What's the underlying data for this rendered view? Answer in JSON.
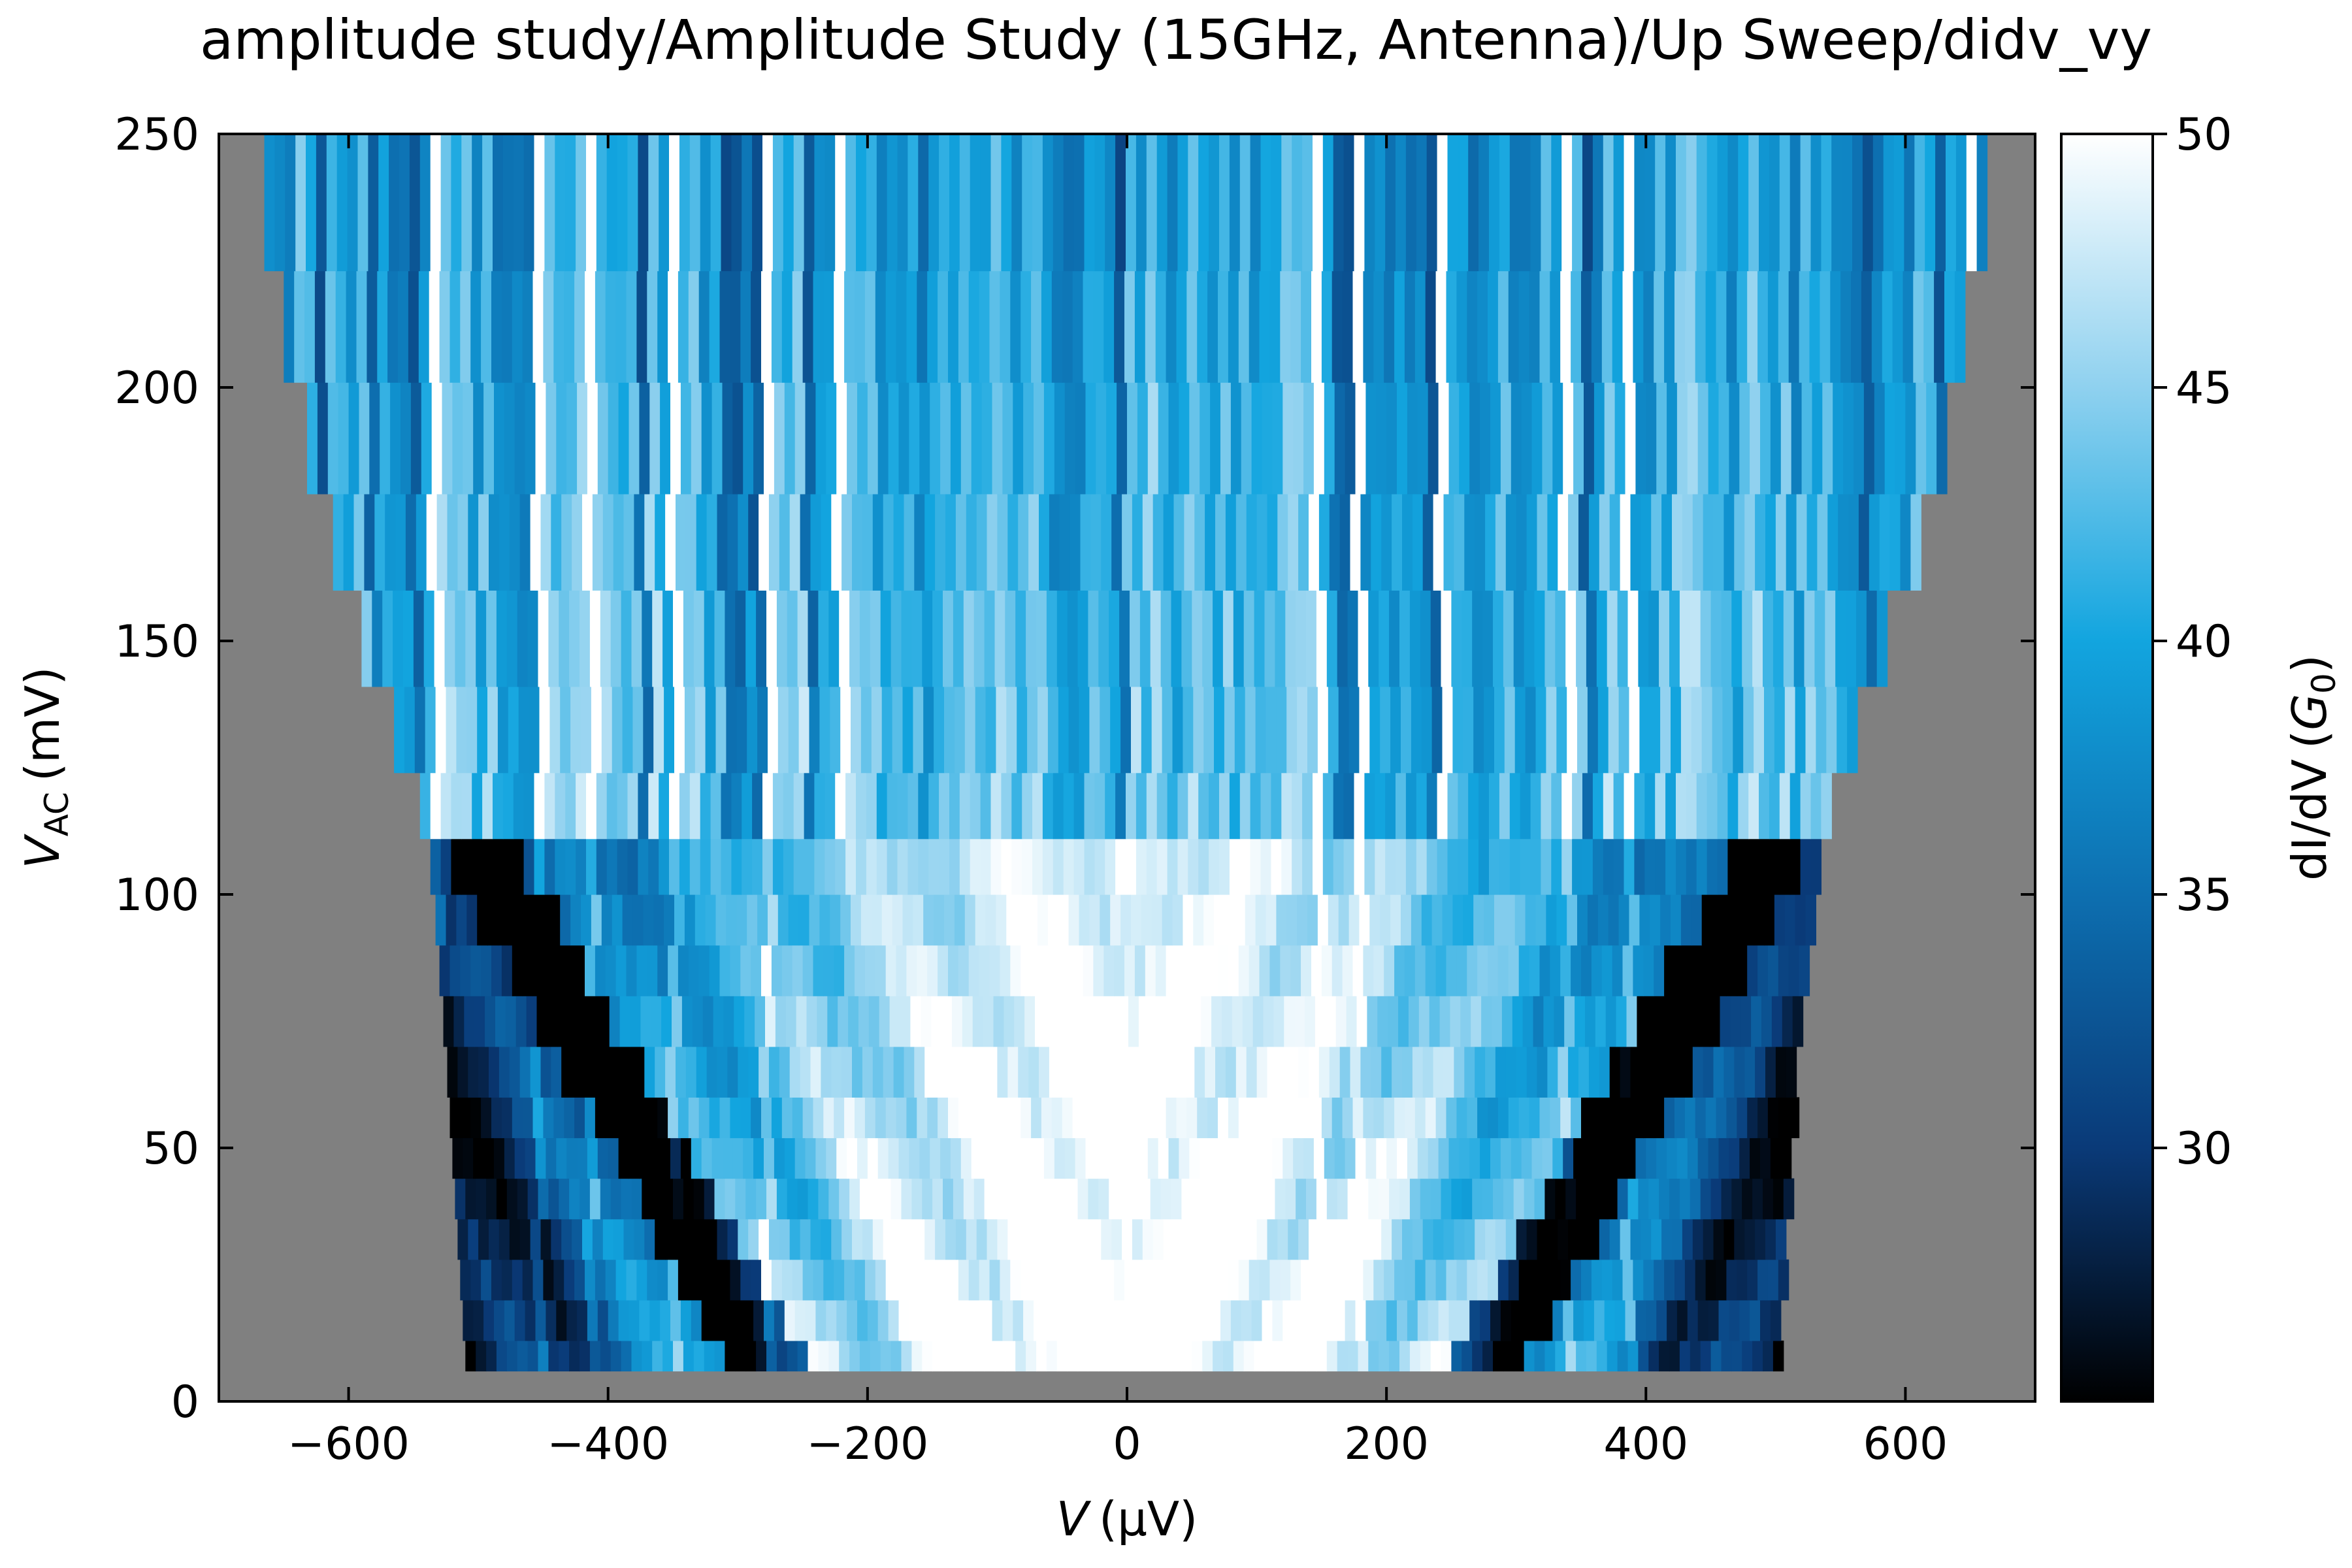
{
  "chart_data": {
    "type": "heatmap",
    "title": "amplitude study/Amplitude Study (15GHz, Antenna)/Up Sweep/didv_vy",
    "x_axis": {
      "label": "V (μV)",
      "label_var": "V",
      "label_unit": "(μV)",
      "range": [
        -700,
        700
      ],
      "ticks": [
        -600,
        -400,
        -200,
        0,
        200,
        400,
        600
      ],
      "tick_labels": [
        "−600",
        "−400",
        "−200",
        "0",
        "200",
        "400",
        "600"
      ]
    },
    "y_axis": {
      "label": "V_AC (mV)",
      "label_var": "V",
      "label_sub": "AC",
      "label_unit": "(mV)",
      "range": [
        0,
        250
      ],
      "ticks": [
        0,
        50,
        100,
        150,
        200,
        250
      ],
      "tick_labels": [
        "0",
        "50",
        "100",
        "150",
        "200",
        "250"
      ]
    },
    "colorbar": {
      "label": "dI/dV (G0)",
      "label_text": "dI/dV",
      "label_unit_var": "G",
      "label_unit_sub": "0",
      "range": [
        25,
        50
      ],
      "ticks": [
        30,
        35,
        40,
        45,
        50
      ],
      "tick_labels": [
        "30",
        "35",
        "40",
        "45",
        "50"
      ],
      "colormap": [
        "#000000",
        "#0a3a78",
        "#0d6fb0",
        "#12a5df",
        "#8fd1ef",
        "#ffffff"
      ]
    },
    "background_color": "#808080",
    "rows": [
      {
        "vac_low": 6,
        "vac_high": 12,
        "v_min": -510,
        "v_max": 500
      },
      {
        "vac_low": 12,
        "vac_high": 20,
        "v_min": -512,
        "v_max": 502
      },
      {
        "vac_low": 20,
        "vac_high": 28,
        "v_min": -514,
        "v_max": 504
      },
      {
        "vac_low": 28,
        "vac_high": 36,
        "v_min": -516,
        "v_max": 506
      },
      {
        "vac_low": 36,
        "vac_high": 44,
        "v_min": -518,
        "v_max": 508
      },
      {
        "vac_low": 44,
        "vac_high": 52,
        "v_min": -520,
        "v_max": 510
      },
      {
        "vac_low": 52,
        "vac_high": 60,
        "v_min": -522,
        "v_max": 512
      },
      {
        "vac_low": 60,
        "vac_high": 70,
        "v_min": -524,
        "v_max": 514
      },
      {
        "vac_low": 70,
        "vac_high": 80,
        "v_min": -527,
        "v_max": 517
      },
      {
        "vac_low": 80,
        "vac_high": 90,
        "v_min": -530,
        "v_max": 520
      },
      {
        "vac_low": 90,
        "vac_high": 100,
        "v_min": -533,
        "v_max": 524
      },
      {
        "vac_low": 100,
        "vac_high": 111,
        "v_min": -537,
        "v_max": 528
      },
      {
        "vac_low": 111,
        "vac_high": 124,
        "v_min": -545,
        "v_max": 540
      },
      {
        "vac_low": 124,
        "vac_high": 141,
        "v_min": -565,
        "v_max": 560
      },
      {
        "vac_low": 141,
        "vac_high": 160,
        "v_min": -590,
        "v_max": 585
      },
      {
        "vac_low": 160,
        "vac_high": 179,
        "v_min": -612,
        "v_max": 607
      },
      {
        "vac_low": 179,
        "vac_high": 201,
        "v_min": -632,
        "v_max": 628
      },
      {
        "vac_low": 201,
        "vac_high": 223,
        "v_min": -650,
        "v_max": 645
      },
      {
        "vac_low": 223,
        "vac_high": 250,
        "v_min": -665,
        "v_max": 660
      }
    ]
  }
}
